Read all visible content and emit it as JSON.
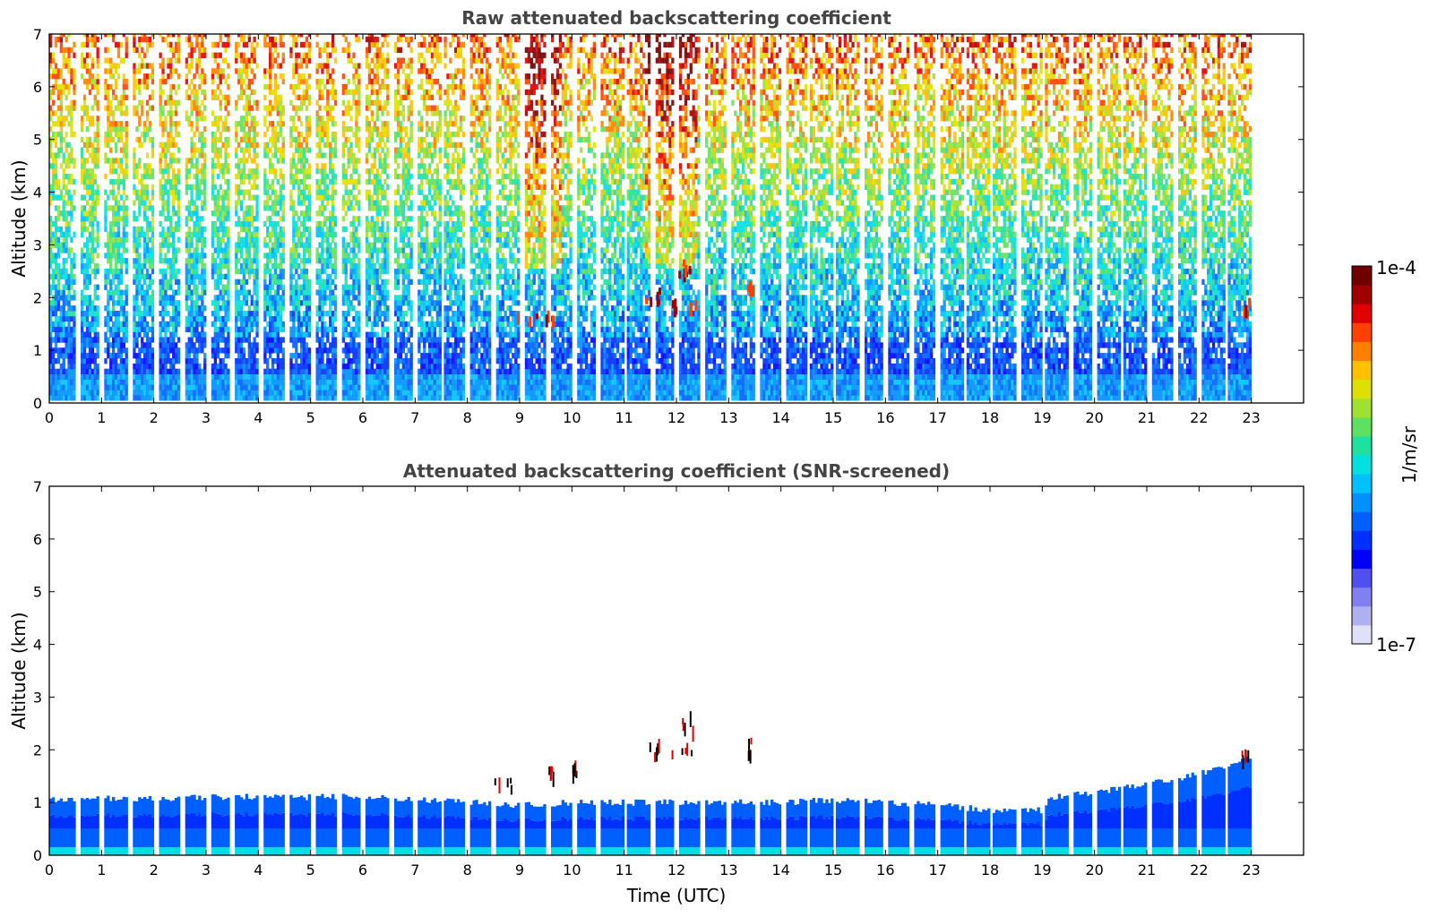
{
  "chart_data": [
    {
      "type": "heatmap",
      "title": "Raw attenuated backscattering coefficient",
      "xlabel": "",
      "ylabel": "Altitude (km)",
      "xlim": [
        0,
        24
      ],
      "ylim": [
        0,
        7
      ],
      "x_ticks": [
        "0",
        "1",
        "2",
        "3",
        "4",
        "5",
        "6",
        "7",
        "8",
        "9",
        "10",
        "11",
        "12",
        "13",
        "14",
        "15",
        "16",
        "17",
        "18",
        "19",
        "20",
        "21",
        "22",
        "23"
      ],
      "y_ticks": [
        "0",
        "1",
        "2",
        "3",
        "4",
        "5",
        "6",
        "7"
      ],
      "data_time_range_utc": [
        0,
        23
      ],
      "description_of_field": "Dense near-surface layer (0-0.6 km) with values near 1e-6; noisy signal increasing toward 1e-5 above 4 km; strong returns near 1e-4 at 1.5-2.8 km between 9 and 13.5 UTC",
      "cloud_features": [
        {
          "time_start": 8.6,
          "time_end": 9.8,
          "alt_km": 1.65
        },
        {
          "time_start": 11.4,
          "time_end": 11.7,
          "alt_km": 2.1
        },
        {
          "time_start": 11.85,
          "time_end": 12.4,
          "alt_km": 2.0
        },
        {
          "time_start": 12.0,
          "time_end": 12.4,
          "alt_km": 2.65
        },
        {
          "time_start": 13.3,
          "time_end": 13.45,
          "alt_km": 2.2
        },
        {
          "time_start": 22.8,
          "time_end": 22.95,
          "alt_km": 1.9
        }
      ]
    },
    {
      "type": "heatmap",
      "title": "Attenuated backscattering coefficient (SNR-screened)",
      "xlabel": "Time (UTC)",
      "ylabel": "Altitude (km)",
      "xlim": [
        0,
        24
      ],
      "ylim": [
        0,
        7
      ],
      "x_ticks": [
        "0",
        "1",
        "2",
        "3",
        "4",
        "5",
        "6",
        "7",
        "8",
        "9",
        "10",
        "11",
        "12",
        "13",
        "14",
        "15",
        "16",
        "17",
        "18",
        "19",
        "20",
        "21",
        "22",
        "23"
      ],
      "y_ticks": [
        "0",
        "1",
        "2",
        "3",
        "4",
        "5",
        "6",
        "7"
      ],
      "boundary_layer_top_km": [
        [
          0,
          1.05
        ],
        [
          1,
          1.08
        ],
        [
          2,
          1.08
        ],
        [
          3,
          1.1
        ],
        [
          4,
          1.12
        ],
        [
          5,
          1.1
        ],
        [
          6,
          1.12
        ],
        [
          7,
          1.05
        ],
        [
          8,
          1.0
        ],
        [
          9,
          0.95
        ],
        [
          10,
          1.0
        ],
        [
          11,
          1.0
        ],
        [
          12,
          1.0
        ],
        [
          13,
          1.0
        ],
        [
          14,
          1.0
        ],
        [
          15,
          1.05
        ],
        [
          16,
          1.0
        ],
        [
          17,
          0.95
        ],
        [
          18,
          0.85
        ],
        [
          19,
          0.85
        ],
        [
          19.1,
          1.1
        ],
        [
          20,
          1.2
        ],
        [
          21,
          1.35
        ],
        [
          22,
          1.55
        ],
        [
          22.9,
          1.85
        ]
      ],
      "cloud_features": [
        {
          "time_start": 8.5,
          "time_end": 8.9,
          "alt_km": 1.45
        },
        {
          "time_start": 9.3,
          "time_end": 9.7,
          "alt_km": 1.7
        },
        {
          "time_start": 10.0,
          "time_end": 10.1,
          "alt_km": 1.7
        },
        {
          "time_start": 11.4,
          "time_end": 11.7,
          "alt_km": 2.1
        },
        {
          "time_start": 11.9,
          "time_end": 12.3,
          "alt_km": 2.0
        },
        {
          "time_start": 12.1,
          "time_end": 12.35,
          "alt_km": 2.6
        },
        {
          "time_start": 13.35,
          "time_end": 13.42,
          "alt_km": 2.1
        },
        {
          "time_start": 22.8,
          "time_end": 22.95,
          "alt_km": 1.9
        }
      ]
    }
  ],
  "colorbar": {
    "max_label": "1e-4",
    "min_label": "1e-7",
    "label": "1/m/sr",
    "scale": "log",
    "range": [
      1e-07,
      0.0001
    ],
    "colors": [
      "#e0e0f8",
      "#b0b0f0",
      "#8080f0",
      "#5050f0",
      "#0000ff",
      "#0030ff",
      "#0060ff",
      "#0090ff",
      "#00c0ff",
      "#00e0e0",
      "#20e0a0",
      "#60e060",
      "#a0e030",
      "#e0e000",
      "#ffc000",
      "#ff8000",
      "#ff4000",
      "#e00000",
      "#a00000",
      "#700000"
    ]
  }
}
